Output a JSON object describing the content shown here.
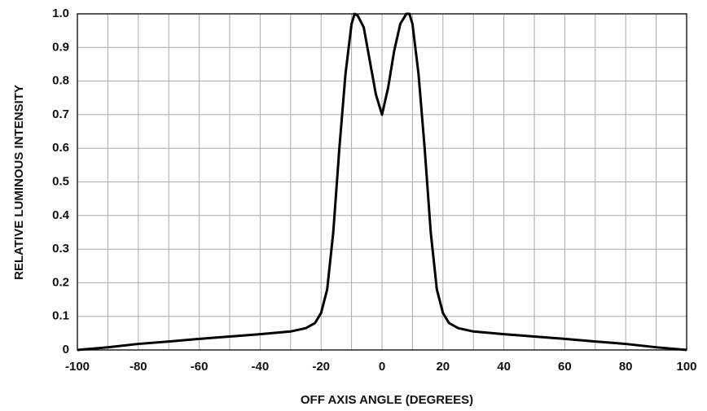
{
  "chart_data": {
    "type": "line",
    "xlabel": "OFF  AXIS  ANGLE  (DEGREES)",
    "ylabel": "RELATIVE  LUMINOUS  INTENSITY",
    "x": [
      -100,
      -90,
      -80,
      -70,
      -60,
      -50,
      -40,
      -30,
      -25,
      -22,
      -20,
      -18,
      -16,
      -14,
      -12,
      -10,
      -9,
      -8,
      -6,
      -4,
      -2,
      0,
      2,
      4,
      6,
      8,
      9,
      10,
      12,
      14,
      16,
      18,
      20,
      22,
      25,
      30,
      40,
      50,
      60,
      70,
      80,
      90,
      100
    ],
    "series": [
      {
        "color": "#000000",
        "values": [
          0,
          0.008,
          0.018,
          0.025,
          0.033,
          0.04,
          0.047,
          0.055,
          0.065,
          0.08,
          0.11,
          0.18,
          0.35,
          0.6,
          0.82,
          0.97,
          1.0,
          0.995,
          0.96,
          0.86,
          0.76,
          0.7,
          0.78,
          0.89,
          0.97,
          1.0,
          1.0,
          0.97,
          0.82,
          0.6,
          0.35,
          0.18,
          0.11,
          0.08,
          0.065,
          0.055,
          0.047,
          0.04,
          0.033,
          0.025,
          0.018,
          0.008,
          0
        ]
      }
    ],
    "xlim": [
      -100,
      100
    ],
    "ylim": [
      0,
      1
    ],
    "xticks": [
      -100,
      -80,
      -60,
      -40,
      -20,
      0,
      20,
      40,
      60,
      80,
      100
    ],
    "xminor_ticks": [
      -90,
      -70,
      -50,
      -30,
      -10,
      10,
      30,
      50,
      70,
      90
    ],
    "yticks": [
      0,
      0.1,
      0.2,
      0.3,
      0.4,
      0.5,
      0.6,
      0.7,
      0.8,
      0.9,
      {
        "value": 1,
        "label": "1.0"
      }
    ],
    "grid": true
  }
}
